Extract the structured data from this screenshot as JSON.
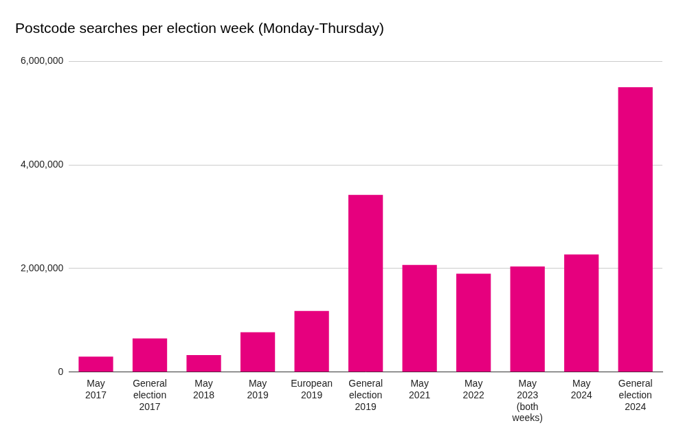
{
  "chart_data": {
    "type": "bar",
    "title": "Postcode searches per election week (Monday-Thursday)",
    "categories": [
      "May 2017",
      "General election 2017",
      "May 2018",
      "May 2019",
      "European 2019",
      "General election 2019",
      "May 2021",
      "May 2022",
      "May 2023 (both weeks)",
      "May 2024",
      "General election 2024"
    ],
    "values": [
      300000,
      650000,
      330000,
      770000,
      1180000,
      3420000,
      2070000,
      1900000,
      2040000,
      2270000,
      5500000
    ],
    "color": "#e6007e",
    "ylim": [
      0,
      6000000
    ],
    "yticks": [
      0,
      {
        "value": 2000000,
        "label": "2,000,000"
      },
      {
        "value": 4000000,
        "label": "4,000,000"
      },
      {
        "value": 6000000,
        "label": "6,000,000"
      }
    ],
    "grid": true
  }
}
